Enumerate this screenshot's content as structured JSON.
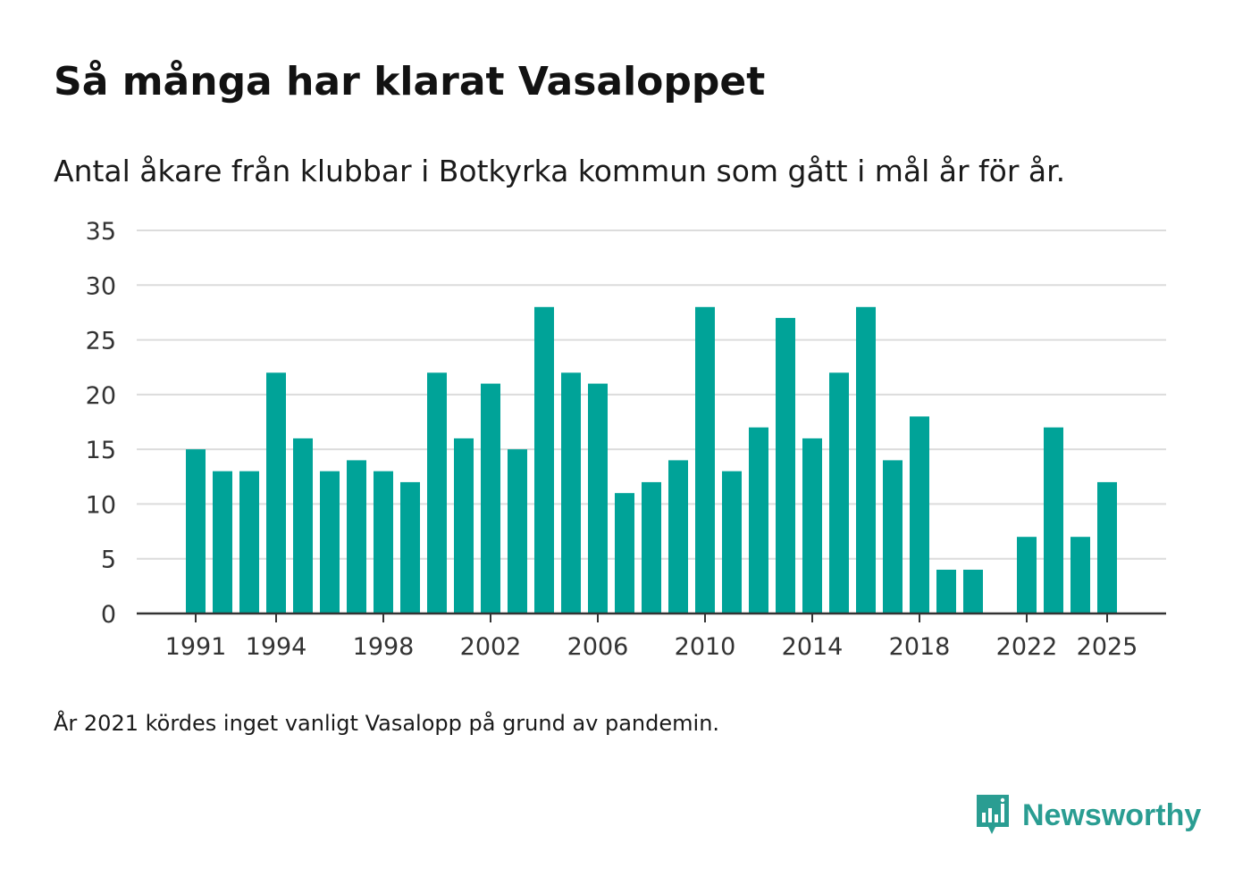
{
  "chart_data": {
    "type": "bar",
    "title": "Så många har klarat Vasaloppet",
    "subtitle": "Antal åkare från klubbar i Botkyrka kommun som gått i mål år för år.",
    "note": "År 2021 kördes inget vanligt Vasalopp på grund av pandemin.",
    "xlabel": "",
    "ylabel": "",
    "ylim": [
      0,
      35
    ],
    "yticks": [
      0,
      5,
      10,
      15,
      20,
      25,
      30,
      35
    ],
    "xticks": [
      1991,
      1994,
      1998,
      2002,
      2006,
      2010,
      2014,
      2018,
      2022,
      2025
    ],
    "categories": [
      1991,
      1992,
      1993,
      1994,
      1995,
      1996,
      1997,
      1998,
      1999,
      2000,
      2001,
      2002,
      2003,
      2004,
      2005,
      2006,
      2007,
      2008,
      2009,
      2010,
      2011,
      2012,
      2013,
      2014,
      2015,
      2016,
      2017,
      2018,
      2019,
      2020,
      2021,
      2022,
      2023,
      2024,
      2025
    ],
    "values": [
      15,
      13,
      13,
      22,
      16,
      13,
      14,
      13,
      12,
      22,
      16,
      21,
      15,
      28,
      22,
      21,
      11,
      12,
      14,
      28,
      13,
      17,
      27,
      16,
      22,
      28,
      14,
      18,
      4,
      4,
      null,
      7,
      17,
      7,
      12
    ],
    "grid": true,
    "bar_color": "#00a398"
  },
  "branding": {
    "name": "Newsworthy",
    "icon": "newsworthy-logo-icon",
    "color": "#2a9d92"
  }
}
